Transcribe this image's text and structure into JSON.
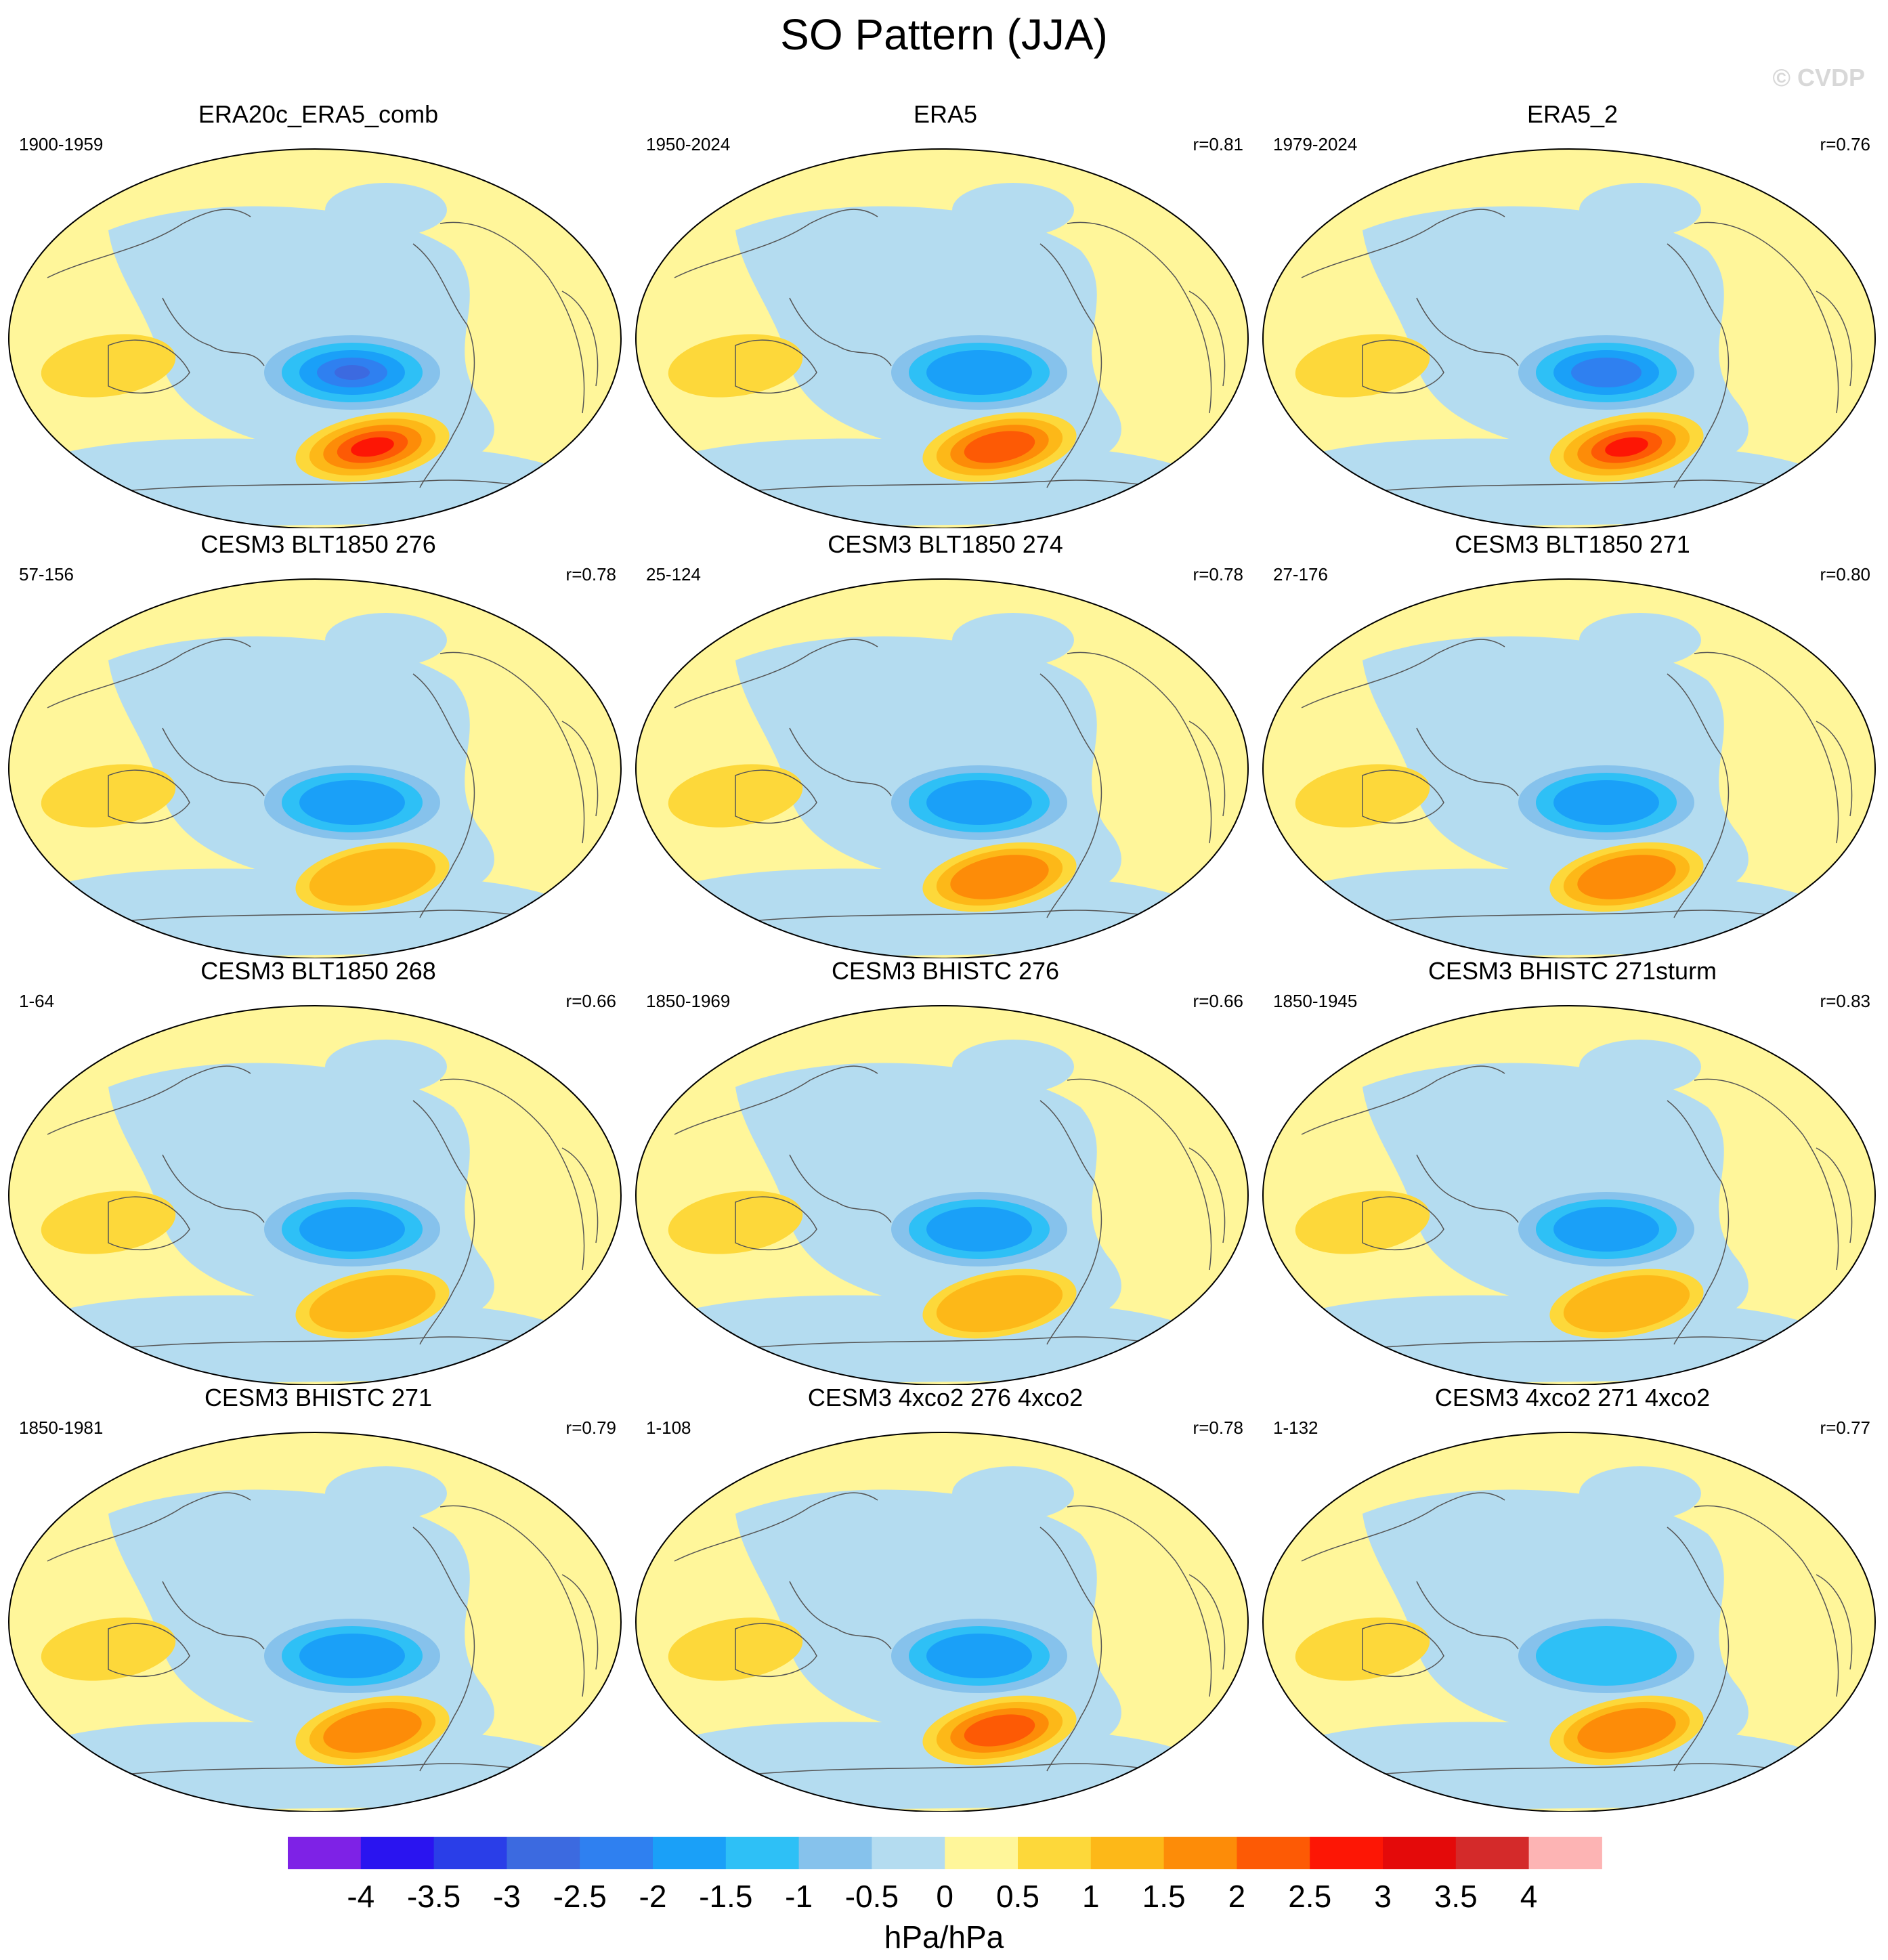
{
  "title": "SO Pattern (JJA)",
  "watermark": "© CVDP",
  "panels": [
    {
      "title": "ERA20c_ERA5_comb",
      "period": "1900-1959",
      "r": "",
      "neg": 2.5,
      "pos": 3.0
    },
    {
      "title": "ERA5",
      "period": "1950-2024",
      "r": "r=0.81",
      "neg": 1.8,
      "pos": 2.0
    },
    {
      "title": "ERA5_2",
      "period": "1979-2024",
      "r": "r=0.76",
      "neg": 2.0,
      "pos": 2.5
    },
    {
      "title": "CESM3 BLT1850 276",
      "period": "57-156",
      "r": "r=0.78",
      "neg": 1.6,
      "pos": 1.3
    },
    {
      "title": "CESM3 BLT1850 274",
      "period": "25-124",
      "r": "r=0.78",
      "neg": 1.7,
      "pos": 1.6
    },
    {
      "title": "CESM3 BLT1850 271",
      "period": "27-176",
      "r": "r=0.80",
      "neg": 1.6,
      "pos": 1.5
    },
    {
      "title": "CESM3 BLT1850 268",
      "period": "1-64",
      "r": "r=0.66",
      "neg": 1.7,
      "pos": 1.1
    },
    {
      "title": "CESM3 BHISTC 276",
      "period": "1850-1969",
      "r": "r=0.66",
      "neg": 1.6,
      "pos": 1.1
    },
    {
      "title": "CESM3 BHISTC 271sturm",
      "period": "1850-1945",
      "r": "r=0.83",
      "neg": 1.7,
      "pos": 1.3
    },
    {
      "title": "CESM3 BHISTC 271",
      "period": "1850-1981",
      "r": "r=0.79",
      "neg": 1.6,
      "pos": 1.8
    },
    {
      "title": "CESM3 4xco2 276 4xco2",
      "period": "1-108",
      "r": "r=0.78",
      "neg": 1.6,
      "pos": 2.0
    },
    {
      "title": "CESM3 4xco2 271 4xco2",
      "period": "1-132",
      "r": "r=0.77",
      "neg": 1.4,
      "pos": 1.8
    }
  ],
  "chart_data": {
    "type": "contour-map",
    "title": "SO Pattern (JJA)",
    "variable": "sea level pressure regression",
    "units": "hPa/hPa",
    "contour_levels": [
      -4,
      -3.5,
      -3,
      -2.5,
      -2,
      -1.5,
      -1,
      -0.5,
      0,
      0.5,
      1,
      1.5,
      2,
      2.5,
      3,
      3.5,
      4
    ],
    "colorbar_colors": [
      "#7e22e6",
      "#2a14f0",
      "#2a3ee8",
      "#3c6ae0",
      "#2f80f0",
      "#1aa0f8",
      "#2ec0f6",
      "#86c2ec",
      "#b4dcf0",
      "#fff69a",
      "#fdd83a",
      "#fdb818",
      "#fd8c08",
      "#fd5a05",
      "#fd1605",
      "#e40a0a",
      "#d42a2a",
      "#fdb4b4"
    ],
    "tick_labels": [
      "-4",
      "-3.5",
      "-3",
      "-2.5",
      "-2",
      "-1.5",
      "-1",
      "-0.5",
      "0",
      "0.5",
      "1",
      "1.5",
      "2",
      "2.5",
      "3",
      "3.5",
      "4"
    ],
    "colorbar_label": "hPa/hPa"
  }
}
